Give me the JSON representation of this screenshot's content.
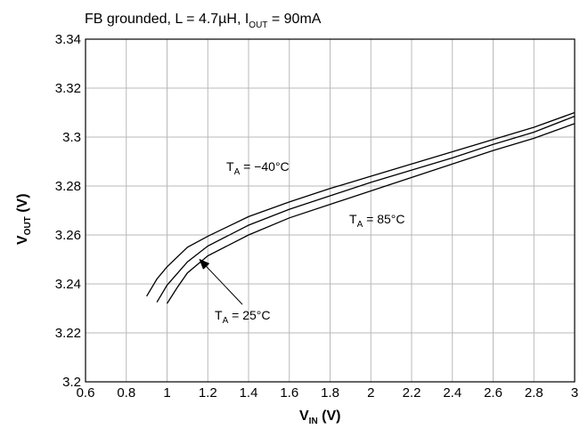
{
  "chart_data": {
    "type": "line",
    "title_parts": {
      "text1": "FB grounded,  L = 4.7µH,  I",
      "sub": "OUT",
      "text2": " = 90mA"
    },
    "xlabel_parts": {
      "main": "V",
      "sub": "IN",
      "unit": " (V)"
    },
    "ylabel_parts": {
      "main": "V",
      "sub": "OUT",
      "unit": " (V)"
    },
    "xlim": [
      0.6,
      3.0
    ],
    "ylim": [
      3.2,
      3.34
    ],
    "xticks": [
      0.6,
      0.8,
      1.0,
      1.2,
      1.4,
      1.6,
      1.8,
      2.0,
      2.2,
      2.4,
      2.6,
      2.8,
      3.0
    ],
    "xtick_labels": [
      "0.6",
      "0.8",
      "1",
      "1.2",
      "1.4",
      "1.6",
      "1.8",
      "2",
      "2.2",
      "2.4",
      "2.6",
      "2.8",
      "3"
    ],
    "yticks": [
      3.2,
      3.22,
      3.24,
      3.26,
      3.28,
      3.3,
      3.32,
      3.34
    ],
    "ytick_labels": [
      "3.2",
      "3.22",
      "3.24",
      "3.26",
      "3.28",
      "3.3",
      "3.32",
      "3.34"
    ],
    "grid": true,
    "series": [
      {
        "x": [
          0.9,
          0.95,
          1.0,
          1.1,
          1.2,
          1.4,
          1.6,
          1.8,
          2.0,
          2.2,
          2.4,
          2.6,
          2.8,
          3.0
        ],
        "y": [
          3.235,
          3.242,
          3.247,
          3.255,
          3.2595,
          3.2675,
          3.2735,
          3.279,
          3.284,
          3.289,
          3.294,
          3.299,
          3.304,
          3.31
        ]
      },
      {
        "x": [
          0.95,
          1.0,
          1.1,
          1.2,
          1.4,
          1.6,
          1.8,
          2.0,
          2.2,
          2.4,
          2.6,
          2.8,
          3.0
        ],
        "y": [
          3.2325,
          3.2395,
          3.249,
          3.2555,
          3.264,
          3.2705,
          3.276,
          3.2815,
          3.2865,
          3.2915,
          3.297,
          3.302,
          3.3085
        ]
      },
      {
        "x": [
          1.0,
          1.05,
          1.1,
          1.2,
          1.4,
          1.6,
          1.8,
          2.0,
          2.2,
          2.4,
          2.6,
          2.8,
          2.95,
          3.0
        ],
        "y": [
          3.232,
          3.2385,
          3.2445,
          3.2515,
          3.26,
          3.267,
          3.2725,
          3.278,
          3.2835,
          3.289,
          3.2945,
          3.2995,
          3.304,
          3.3055
        ]
      }
    ],
    "annotations": [
      {
        "main": "T",
        "sub": "A",
        "value": " = −40°C"
      },
      {
        "main": "T",
        "sub": "A",
        "value": " = 85°C"
      },
      {
        "main": "T",
        "sub": "A",
        "value": " = 25°C",
        "arrow_to": [
          1.16,
          3.25
        ]
      }
    ]
  }
}
